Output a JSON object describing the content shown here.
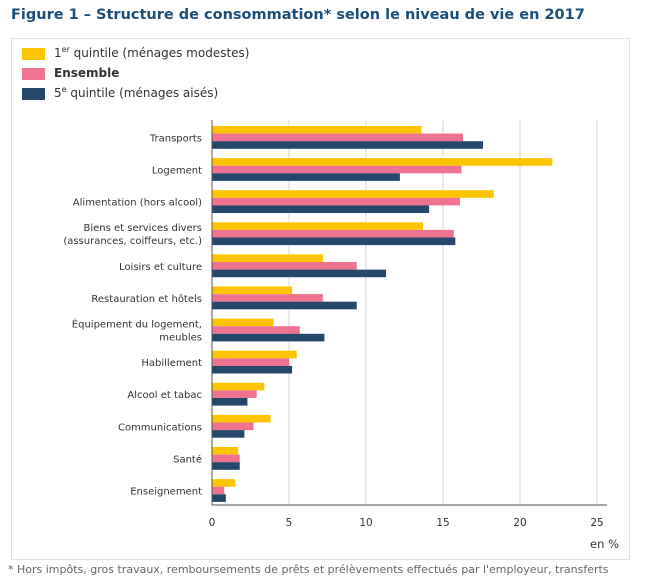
{
  "page": {
    "title": "Figure 1 – Structure de consommation* selon le niveau de vie en 2017",
    "footnote": "* Hors impôts, gros travaux, remboursements de prêts et prélèvements effectués par l'employeur, transferts"
  },
  "legend": {
    "items": [
      {
        "pre": "1",
        "sup": "er",
        "post": " quintile (ménages modestes)",
        "color": "#fdc500",
        "bold": false
      },
      {
        "pre": "Ensemble",
        "sup": "",
        "post": "",
        "color": "#ef7390",
        "bold": true
      },
      {
        "pre": "5",
        "sup": "e",
        "post": " quintile (ménages aisés)",
        "color": "#24476b",
        "bold": false
      }
    ]
  },
  "chart_data": {
    "type": "bar",
    "orientation": "horizontal",
    "title": "",
    "xlabel": "en %",
    "ylabel": "",
    "xlim": [
      0,
      25
    ],
    "xticks": [
      0,
      5,
      10,
      15,
      20,
      25
    ],
    "grid": true,
    "legend_position": "top-left",
    "categories": [
      "Transports",
      "Logement",
      "Alimentation (hors alcool)",
      "Biens et services divers\n(assurances, coiffeurs, etc.)",
      "Loisirs et culture",
      "Restauration et hôtels",
      "Équipement du logement,\nmeubles",
      "Habillement",
      "Alcool et tabac",
      "Communications",
      "Santé",
      "Enseignement"
    ],
    "series": [
      {
        "name": "1er quintile (ménages modestes)",
        "color": "#fdc500",
        "values": [
          13.6,
          22.1,
          18.3,
          13.7,
          7.2,
          5.2,
          4.0,
          5.5,
          3.4,
          3.8,
          1.7,
          1.5
        ]
      },
      {
        "name": "Ensemble",
        "color": "#ef7390",
        "values": [
          16.3,
          16.2,
          16.1,
          15.7,
          9.4,
          7.2,
          5.7,
          5.0,
          2.9,
          2.7,
          1.8,
          0.8
        ]
      },
      {
        "name": "5e quintile (ménages aisés)",
        "color": "#24476b",
        "values": [
          17.6,
          12.2,
          14.1,
          15.8,
          11.3,
          9.4,
          7.3,
          5.2,
          2.3,
          2.1,
          1.8,
          0.9
        ]
      }
    ]
  }
}
